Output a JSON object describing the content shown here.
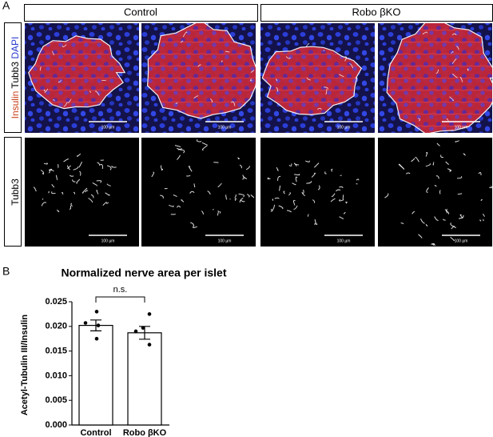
{
  "panel_a": {
    "label": "A",
    "column_headers": [
      "Control",
      "Robo βKO"
    ],
    "stain_labels": [
      "Insulin",
      "Tubb3",
      "DAPI"
    ],
    "row2_label": "Tubb3",
    "scale_bar_label": "100 µm"
  },
  "chart_data": {
    "type": "bar",
    "panel_label": "B",
    "title": "Normalized nerve area per islet",
    "y_label": "Acetyl-Tubulin III/Insulin",
    "categories": [
      "Control",
      "Robo βKO"
    ],
    "values": [
      0.0202,
      0.0187
    ],
    "errors": [
      0.0011,
      0.0013
    ],
    "points": [
      [
        0.023,
        0.0207,
        0.0202,
        0.0175
      ],
      [
        0.0225,
        0.0197,
        0.019,
        0.0163
      ]
    ],
    "color": "#ffffff",
    "edge_color": "#000000",
    "ylim": [
      0,
      0.025
    ],
    "yticks": [
      {
        "value": 0,
        "label": "0.000"
      },
      {
        "value": 0.005,
        "label": "0.005"
      },
      {
        "value": 0.01,
        "label": "0.010"
      },
      {
        "value": 0.015,
        "label": "0.015"
      },
      {
        "value": 0.02,
        "label": "0.020"
      },
      {
        "value": 0.025,
        "label": "0.025"
      }
    ],
    "annotation": "n.s."
  }
}
